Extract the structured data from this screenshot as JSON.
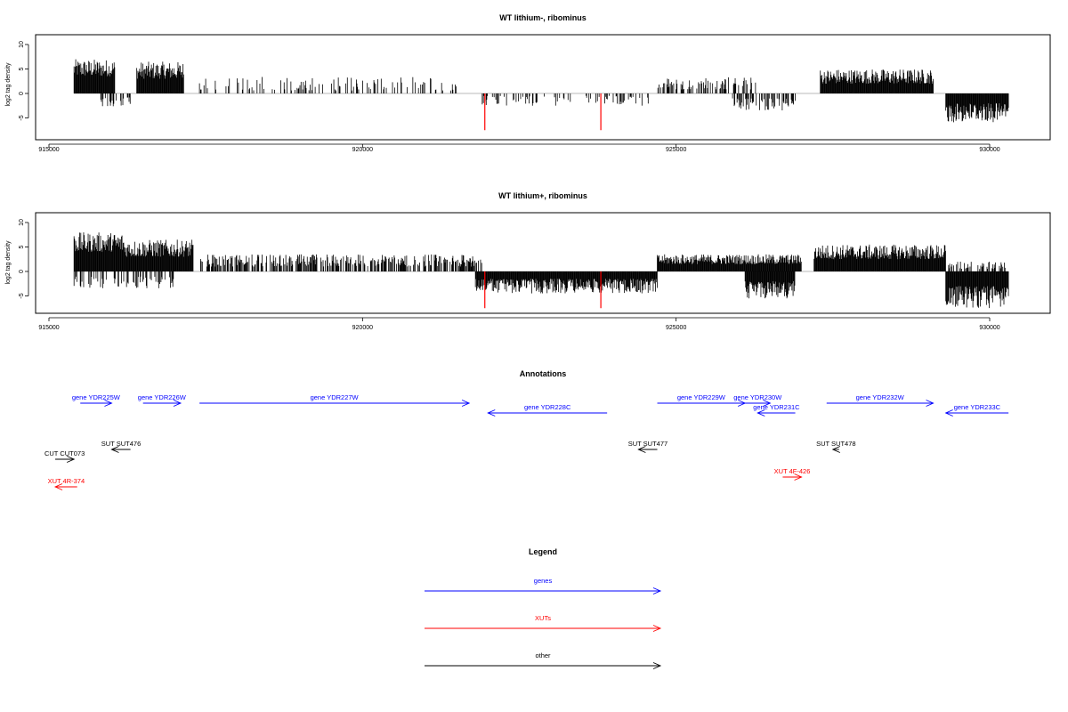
{
  "chart_data": [
    {
      "type": "bar",
      "title": "WT lithium-, ribominus",
      "ylabel": "log2 tag density",
      "xlim": [
        914750,
        930800
      ],
      "ylim": [
        -8,
        12
      ],
      "xticks": [
        915000,
        920000,
        925000,
        930000
      ],
      "yticks": [
        -5,
        0,
        5,
        10
      ],
      "highlight_color": "#ff0000",
      "bar_color": "#000000",
      "plus_strand_regions": [
        {
          "start": 915400,
          "end": 916050,
          "base": 3.5,
          "amp": 3.5
        },
        {
          "start": 916400,
          "end": 917150,
          "base": 3.0,
          "amp": 3.5
        },
        {
          "start": 917400,
          "end": 921500,
          "base": 0.6,
          "amp": 2.8,
          "sparse": 0.25
        },
        {
          "start": 924700,
          "end": 926300,
          "base": 0.8,
          "amp": 2.5,
          "sparse": 0.35
        },
        {
          "start": 927300,
          "end": 929100,
          "base": 2.0,
          "amp": 3.0
        }
      ],
      "minus_strand_regions": [
        {
          "start": 915800,
          "end": 916300,
          "base": -0.8,
          "amp": -2.0,
          "sparse": 0.3
        },
        {
          "start": 921900,
          "end": 924600,
          "base": -0.5,
          "amp": -2.0,
          "sparse": 0.25
        },
        {
          "start": 925900,
          "end": 926900,
          "base": -1.0,
          "amp": -2.5,
          "sparse": 0.4
        },
        {
          "start": 929300,
          "end": 930300,
          "base": -2.0,
          "amp": -4.0
        }
      ],
      "highlighted_bars": [
        {
          "x": 921950,
          "y": -7.5
        },
        {
          "x": 923800,
          "y": -7.5
        }
      ]
    },
    {
      "type": "bar",
      "title": "WT lithium+, ribominus",
      "ylabel": "log2 tag density",
      "xlim": [
        914750,
        930800
      ],
      "ylim": [
        -8,
        12
      ],
      "xticks": [
        915000,
        920000,
        925000,
        930000
      ],
      "yticks": [
        -5,
        0,
        5,
        10
      ],
      "highlight_color": "#ff0000",
      "bar_color": "#000000",
      "plus_strand_regions": [
        {
          "start": 915400,
          "end": 916200,
          "base": 4.0,
          "amp": 4.0
        },
        {
          "start": 916200,
          "end": 917300,
          "base": 3.0,
          "amp": 3.5
        },
        {
          "start": 917400,
          "end": 921900,
          "base": 1.0,
          "amp": 2.5,
          "sparse": 0.6
        },
        {
          "start": 924700,
          "end": 927000,
          "base": 1.5,
          "amp": 2.0
        },
        {
          "start": 927200,
          "end": 929300,
          "base": 2.5,
          "amp": 3.0
        },
        {
          "start": 929300,
          "end": 930300,
          "base": 0.5,
          "amp": 1.5,
          "sparse": 0.4
        }
      ],
      "minus_strand_regions": [
        {
          "start": 915400,
          "end": 917000,
          "base": -1.0,
          "amp": -2.5,
          "sparse": 0.3
        },
        {
          "start": 921800,
          "end": 924700,
          "base": -1.5,
          "amp": -3.0
        },
        {
          "start": 926100,
          "end": 926900,
          "base": -2.0,
          "amp": -3.5
        },
        {
          "start": 929300,
          "end": 930300,
          "base": -3.0,
          "amp": -4.5
        }
      ],
      "highlighted_bars": [
        {
          "x": 921950,
          "y": -7.5
        },
        {
          "x": 923800,
          "y": -7.5
        }
      ]
    }
  ],
  "annotations": {
    "title": "Annotations",
    "features": [
      {
        "label": "gene YDR225W",
        "type": "genes",
        "strand": "+",
        "start": 915500,
        "end": 916000,
        "row": 1
      },
      {
        "label": "gene YDR226W",
        "type": "genes",
        "strand": "+",
        "start": 916500,
        "end": 917100,
        "row": 1
      },
      {
        "label": "gene YDR227W",
        "type": "genes",
        "strand": "+",
        "start": 917400,
        "end": 921700,
        "row": 1
      },
      {
        "label": "gene YDR228C",
        "type": "genes",
        "strand": "-",
        "start": 922000,
        "end": 923900,
        "row": 2
      },
      {
        "label": "gene YDR229W",
        "type": "genes",
        "strand": "+",
        "start": 924700,
        "end": 926100,
        "row": 1
      },
      {
        "label": "gene YDR230W",
        "type": "genes",
        "strand": "+",
        "start": 926100,
        "end": 926500,
        "row": 1
      },
      {
        "label": "gene YDR231C",
        "type": "genes",
        "strand": "-",
        "start": 926300,
        "end": 926900,
        "row": 2
      },
      {
        "label": "gene YDR232W",
        "type": "genes",
        "strand": "+",
        "start": 927400,
        "end": 929100,
        "row": 1
      },
      {
        "label": "gene YDR233C",
        "type": "genes",
        "strand": "-",
        "start": 929300,
        "end": 930300,
        "row": 2
      },
      {
        "label": "SUT SUT476",
        "type": "other",
        "strand": "-",
        "start": 916000,
        "end": 916300,
        "row": 4
      },
      {
        "label": "CUT CUT073",
        "type": "other",
        "strand": "+",
        "start": 915100,
        "end": 915400,
        "row": 5
      },
      {
        "label": "SUT SUT477",
        "type": "other",
        "strand": "-",
        "start": 924400,
        "end": 924700,
        "row": 4
      },
      {
        "label": "SUT SUT478",
        "type": "other",
        "strand": "-",
        "start": 927500,
        "end": 927600,
        "row": 4
      },
      {
        "label": "XUT 4R-374",
        "type": "XUTs",
        "strand": "-",
        "start": 915100,
        "end": 915450,
        "row": 7
      },
      {
        "label": "XUT 4F-426",
        "type": "XUTs",
        "strand": "+",
        "start": 926700,
        "end": 927000,
        "row": 6
      }
    ]
  },
  "legend": {
    "title": "Legend",
    "items": [
      {
        "label": "genes",
        "color": "#0000ff"
      },
      {
        "label": "XUTs",
        "color": "#ff0000"
      },
      {
        "label": "other",
        "color": "#000000"
      }
    ]
  }
}
